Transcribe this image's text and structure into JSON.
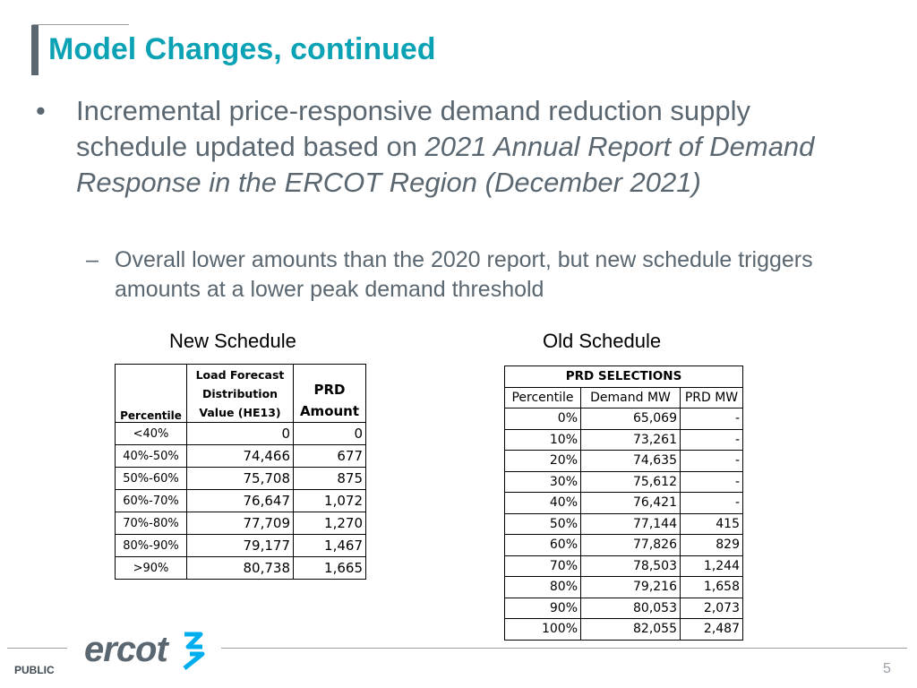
{
  "slide": {
    "title": "Model Changes, continued",
    "bullet_symbol": "•",
    "bullet_text_plain": "Incremental price-responsive demand reduction supply schedule updated based on ",
    "bullet_text_italic": "2021 Annual Report of Demand Response in the ERCOT Region (December 2021)",
    "sub_bullet_symbol": "–",
    "sub_bullet_text": "Overall lower amounts than the 2020 report, but new schedule triggers amounts at a lower peak demand threshold"
  },
  "new_schedule": {
    "caption": "New Schedule",
    "headers": [
      "Percentile",
      "Load Forecast Distribution Value (HE13)",
      "PRD Amount"
    ],
    "rows": [
      [
        "<40%",
        "0",
        "0"
      ],
      [
        "40%-50%",
        "74,466",
        "677"
      ],
      [
        "50%-60%",
        "75,708",
        "875"
      ],
      [
        "60%-70%",
        "76,647",
        "1,072"
      ],
      [
        "70%-80%",
        "77,709",
        "1,270"
      ],
      [
        "80%-90%",
        "79,177",
        "1,467"
      ],
      [
        ">90%",
        "80,738",
        "1,665"
      ]
    ]
  },
  "old_schedule": {
    "caption": "Old Schedule",
    "title": "PRD SELECTIONS",
    "headers": [
      "Percentile",
      "Demand MW",
      "PRD MW"
    ],
    "rows": [
      [
        "0%",
        "65,069",
        "-"
      ],
      [
        "10%",
        "73,261",
        "-"
      ],
      [
        "20%",
        "74,635",
        "-"
      ],
      [
        "30%",
        "75,612",
        "-"
      ],
      [
        "40%",
        "76,421",
        "-"
      ],
      [
        "50%",
        "77,144",
        "415"
      ],
      [
        "60%",
        "77,826",
        "829"
      ],
      [
        "70%",
        "78,503",
        "1,244"
      ],
      [
        "80%",
        "79,216",
        "1,658"
      ],
      [
        "90%",
        "80,053",
        "2,073"
      ],
      [
        "100%",
        "82,055",
        "2,487"
      ]
    ]
  },
  "footer": {
    "logo_text": "ercot",
    "classification": "PUBLIC",
    "page_number": "5"
  },
  "colors": {
    "title": "#0aa2b4",
    "body_text": "#5b6770",
    "logo_text": "#5b6770",
    "logo_mark": "#00aeef"
  }
}
